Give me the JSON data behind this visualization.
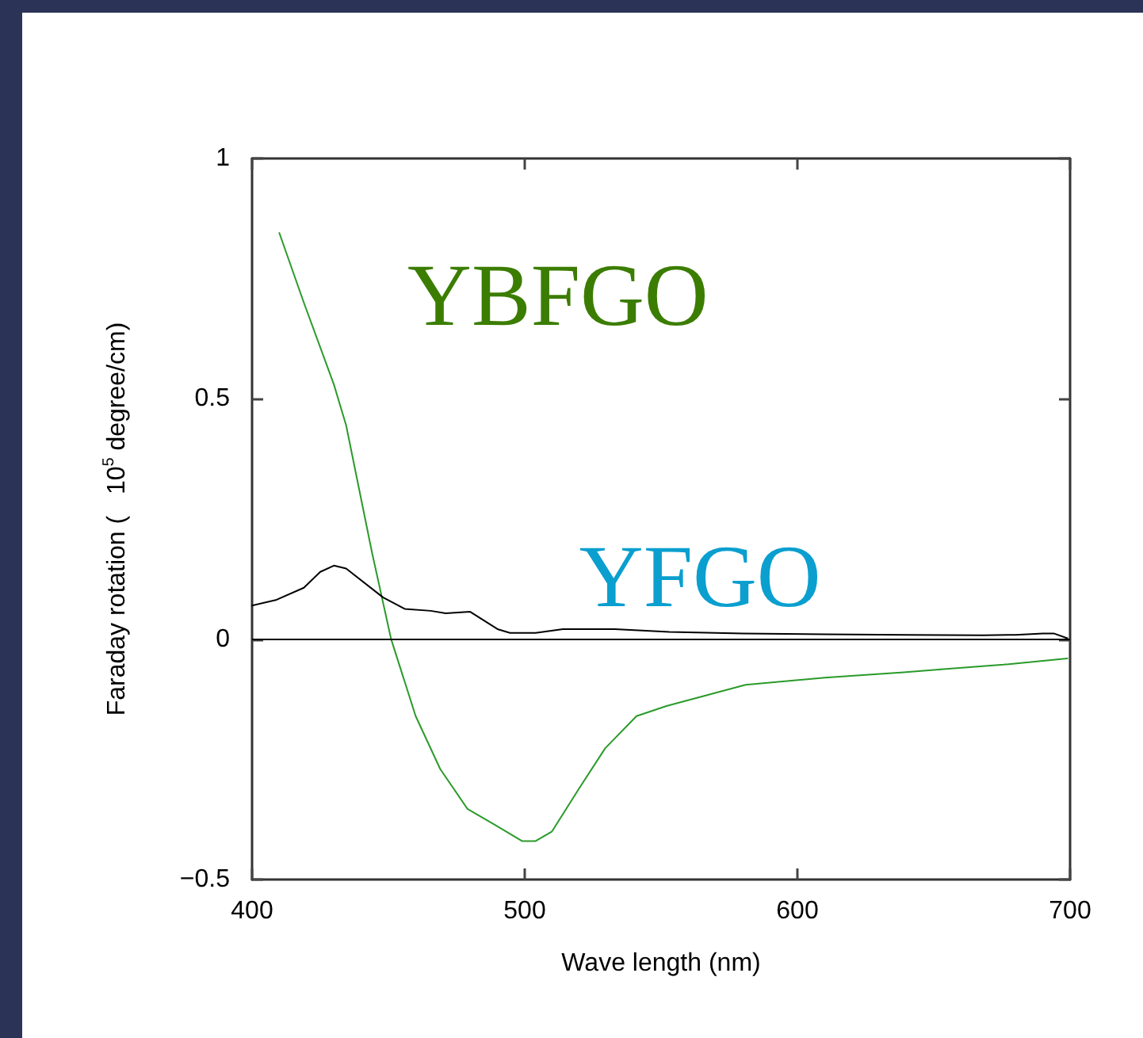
{
  "chart_data": {
    "type": "line",
    "xlabel": "Wave length (nm)",
    "ylabel": "Faraday rotation (   10$^{5}$ degree/cm)",
    "xlim": [
      400,
      700
    ],
    "xticks": [
      400,
      500,
      600,
      700
    ],
    "ylim": [
      -0.5,
      1
    ],
    "yticks": [
      -0.5,
      0,
      0.5,
      1
    ],
    "grid": false,
    "legend": false,
    "marker": "none",
    "line_style": "solid",
    "ref_lines": [
      {
        "axis": "y",
        "value": 0,
        "color": "#000000"
      }
    ],
    "series": [
      {
        "name": "YBFGO",
        "color": "#2a9a2a",
        "x": [
          410,
          419,
          430,
          434.5,
          444,
          451,
          460,
          469,
          479,
          489,
          499,
          504,
          510,
          520,
          529.5,
          541,
          552,
          581,
          610,
          639,
          654.5,
          675.6,
          699
        ],
        "values": [
          0.845,
          0.7,
          0.53,
          0.445,
          0.18,
          0.0,
          -0.16,
          -0.27,
          -0.353,
          -0.386,
          -0.42,
          -0.42,
          -0.4,
          -0.31,
          -0.227,
          -0.16,
          -0.139,
          -0.095,
          -0.08,
          -0.069,
          -0.062,
          -0.053,
          -0.04
        ]
      },
      {
        "name": "YFGO",
        "color": "#000000",
        "x": [
          400,
          409,
          419,
          425,
          430,
          434.5,
          448,
          456,
          465.5,
          471,
          480,
          490,
          494.6,
          504,
          514,
          533,
          553,
          580,
          610,
          640,
          668,
          680,
          690,
          694,
          699
        ],
        "values": [
          0.07,
          0.082,
          0.107,
          0.14,
          0.153,
          0.147,
          0.087,
          0.063,
          0.059,
          0.054,
          0.057,
          0.021,
          0.013,
          0.013,
          0.021,
          0.021,
          0.015,
          0.012,
          0.01,
          0.009,
          0.008,
          0.009,
          0.012,
          0.012,
          0.002
        ]
      }
    ]
  }
}
